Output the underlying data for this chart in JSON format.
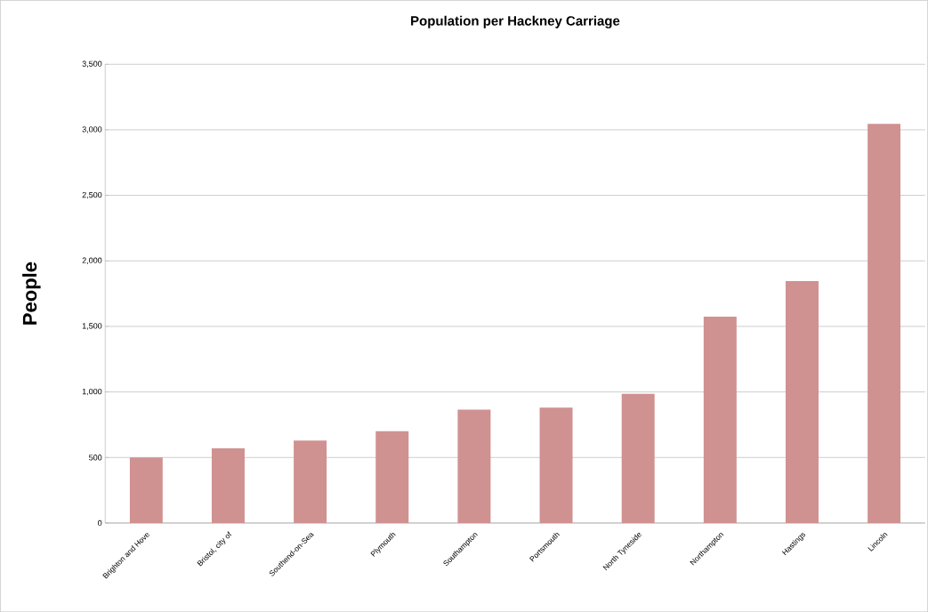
{
  "chart_data": {
    "type": "bar",
    "title": "Population per Hackney Carriage",
    "ylabel": "People",
    "categories": [
      "Brighton and Hove",
      "Bristol, city of",
      "Southend-on-Sea",
      "Plymouth",
      "Southampton",
      "Portsmouth",
      "North Tyneside",
      "Northampton",
      "Hastings",
      "Lincoln"
    ],
    "values": [
      500,
      570,
      630,
      700,
      865,
      880,
      985,
      1575,
      1845,
      3045
    ],
    "color": "#d09191",
    "ylim": [
      0,
      3500
    ],
    "yticks": [
      0,
      500,
      {
        "value": 1000,
        "label": "1,000"
      },
      {
        "value": 1500,
        "label": "1,500"
      },
      {
        "value": 2000,
        "label": "2,000"
      },
      {
        "value": 2500,
        "label": "2,500"
      },
      {
        "value": 3000,
        "label": "3,000"
      },
      {
        "value": 3500,
        "label": "3,500"
      }
    ],
    "grid": "y"
  }
}
